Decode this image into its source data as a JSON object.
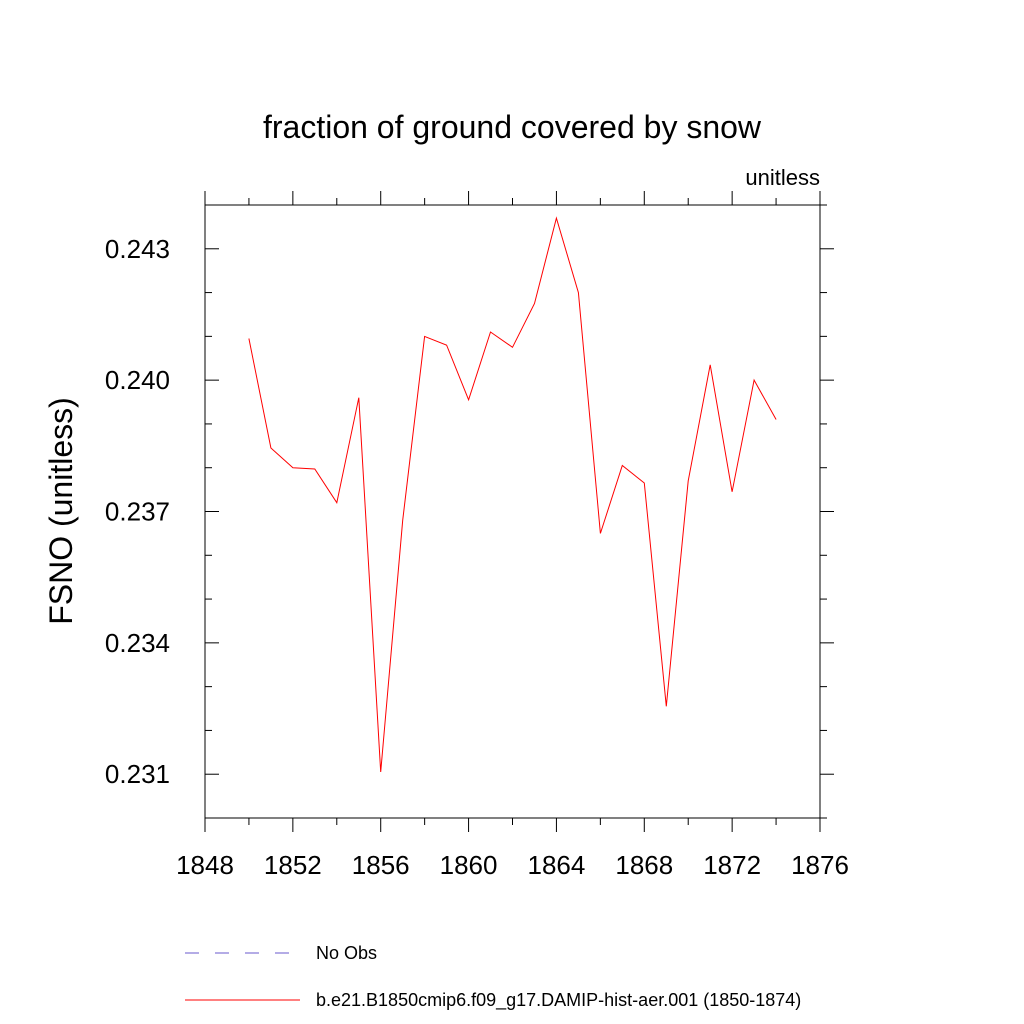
{
  "chart_data": {
    "type": "line",
    "title": "fraction of ground covered by snow",
    "units_label": "unitless",
    "ylabel": "FSNO  (unitless)",
    "xlabel": "",
    "xlim": [
      1848,
      1876
    ],
    "ylim": [
      0.23,
      0.244
    ],
    "x_ticks": [
      "1848",
      "1852",
      "1856",
      "1860",
      "1864",
      "1868",
      "1872",
      "1876"
    ],
    "y_ticks": [
      "0.231",
      "0.234",
      "0.237",
      "0.240",
      "0.243"
    ],
    "x_minor_step": 2,
    "y_minor_step": 0.001,
    "grid": false,
    "legend_position": "bottom",
    "series": [
      {
        "name": "b.e21.B1850cmip6.f09_g17.DAMIP-hist-aer.001 (1850-1874)",
        "color": "#ff0000",
        "style": "solid",
        "x": [
          1850,
          1851,
          1852,
          1853,
          1854,
          1855,
          1856,
          1857,
          1858,
          1859,
          1860,
          1861,
          1862,
          1863,
          1864,
          1865,
          1866,
          1867,
          1868,
          1869,
          1870,
          1871,
          1872,
          1873,
          1874
        ],
        "y": [
          0.24095,
          0.23845,
          0.238,
          0.23797,
          0.2372,
          0.2396,
          0.23105,
          0.2368,
          0.241,
          0.2408,
          0.23955,
          0.2411,
          0.24075,
          0.24175,
          0.2437,
          0.242,
          0.2365,
          0.23805,
          0.23765,
          0.23255,
          0.2377,
          0.24035,
          0.23745,
          0.24,
          0.2391
        ]
      }
    ],
    "legend": [
      {
        "label": "No Obs",
        "color": "#6a5acd",
        "style": "dashed"
      },
      {
        "label": "b.e21.B1850cmip6.f09_g17.DAMIP-hist-aer.001 (1850-1874)",
        "color": "#ff0000",
        "style": "solid"
      }
    ]
  }
}
